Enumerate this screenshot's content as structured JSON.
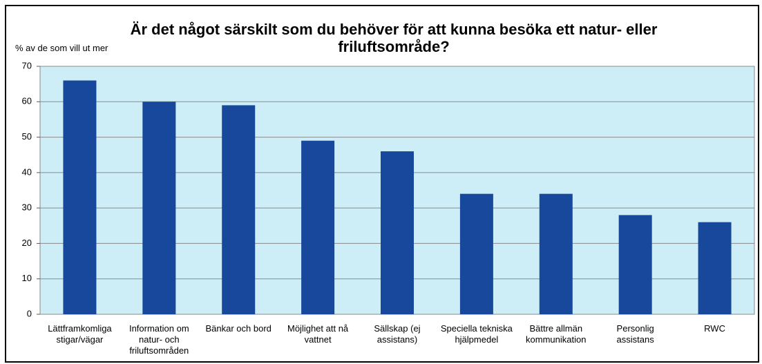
{
  "chart_data": {
    "type": "bar",
    "title": "Är det något särskilt som du behöver för att kunna besöka ett natur- eller friluftsområde?",
    "y_label": "% av de som vill ut mer",
    "categories": [
      "Lättframkomliga stigar/vägar",
      "Information om natur- och friluftsområden",
      "Bänkar och bord",
      "Möjlighet att nå vattnet",
      "Sällskap (ej assistans)",
      "Speciella tekniska hjälpmedel",
      "Bättre allmän kommunikation",
      "Personlig assistans",
      "RWC"
    ],
    "values": [
      66,
      60,
      59,
      49,
      46,
      34,
      34,
      28,
      26
    ],
    "color": "#17489c",
    "ylim": [
      0,
      70
    ],
    "yticks": [
      0,
      10,
      20,
      30,
      40,
      50,
      60,
      70
    ],
    "grid": true
  }
}
